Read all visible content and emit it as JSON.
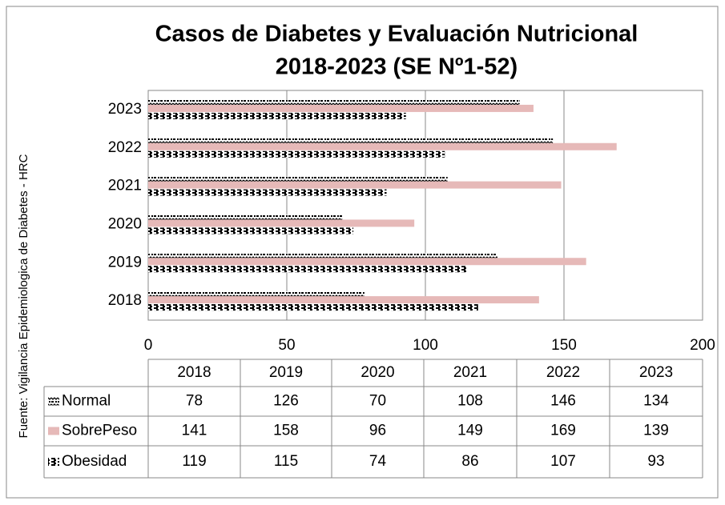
{
  "chart_data": {
    "type": "bar",
    "orientation": "horizontal",
    "title": [
      "Casos de Diabetes y Evaluación Nutricional",
      "2018-2023 (SE Nº1-52)"
    ],
    "y_label": "Fuente: Vigilancia Epidemiologica de Diabetes - HRC",
    "categories": [
      "2018",
      "2019",
      "2020",
      "2021",
      "2022",
      "2023"
    ],
    "series": [
      {
        "name": "Normal",
        "color": "#000000",
        "pattern": "zigzag",
        "values": [
          78,
          126,
          70,
          108,
          146,
          134
        ]
      },
      {
        "name": "SobrePeso",
        "color": "#e6b9b8",
        "values": [
          141,
          158,
          96,
          149,
          169,
          139
        ]
      },
      {
        "name": "Obesidad",
        "color": "#000000",
        "pattern": "dashes",
        "values": [
          119,
          115,
          74,
          86,
          107,
          93
        ]
      }
    ],
    "xlim": [
      0,
      200
    ],
    "xticks": [
      0,
      50,
      100,
      150,
      200
    ],
    "grid": true,
    "data_table": true
  }
}
